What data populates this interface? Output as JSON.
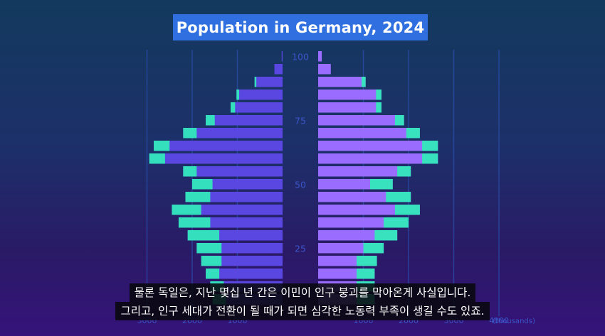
{
  "chart_data": {
    "type": "bar",
    "orientation": "horizontal",
    "subtype": "population-pyramid",
    "title": "Population in Germany, 2024",
    "y_tick_labels": [
      "25",
      "50",
      "75",
      "100"
    ],
    "x_tick_labels": [
      "3000",
      "2000",
      "1000",
      "1000",
      "2000",
      "3000",
      "4000"
    ],
    "x_unit_label": "(thousands)",
    "age_groups": [
      100,
      95,
      90,
      85,
      80,
      75,
      70,
      65,
      60,
      55,
      50,
      45,
      40,
      35,
      30,
      25,
      20,
      15,
      10,
      5
    ],
    "series": [
      {
        "name": "left",
        "values": [
          20,
          180,
          620,
          1020,
          1150,
          1700,
          2200,
          2850,
          2950,
          2200,
          2000,
          2150,
          2450,
          2300,
          2100,
          1900,
          1800,
          1700,
          1600,
          1550
        ]
      },
      {
        "name": "right",
        "values": [
          80,
          280,
          1050,
          1400,
          1400,
          1900,
          2250,
          2650,
          2650,
          2050,
          1650,
          2050,
          2250,
          2000,
          1750,
          1450,
          1300,
          1250,
          1250,
          1250
        ]
      }
    ],
    "highlight": [
      {
        "name": "left",
        "values": [
          0,
          0,
          40,
          60,
          100,
          200,
          300,
          350,
          350,
          300,
          450,
          550,
          650,
          700,
          700,
          550,
          450,
          300,
          300,
          300
        ]
      },
      {
        "name": "right",
        "values": [
          0,
          0,
          90,
          120,
          120,
          200,
          300,
          350,
          350,
          300,
          500,
          550,
          550,
          550,
          500,
          450,
          450,
          400,
          400,
          400
        ]
      }
    ],
    "xlim": [
      0,
      4000
    ],
    "grid": true,
    "colors": {
      "bar_left": "#5a46e0",
      "bar_right": "#9a6cff",
      "highlight": "#2ff0b8",
      "axis_text": "#3b55c9",
      "grid": "#2a4fae"
    }
  },
  "subtitles": [
    "물론 독일은, 지난 몇십 년 간은 이민이 인구 붕괴를 막아온게 사실입니다.",
    "그리고, 인구 세대가 전환이 될 때가 되면 심각한 노동력 부족이 생길 수도 있죠."
  ]
}
